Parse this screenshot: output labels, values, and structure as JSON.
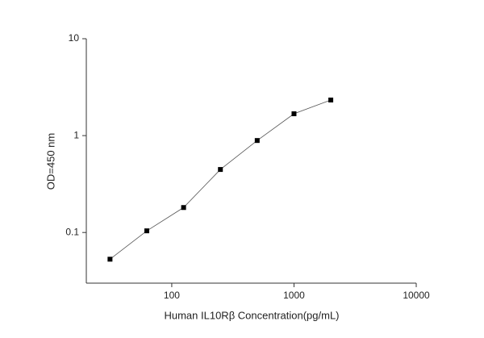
{
  "chart_data": {
    "type": "line",
    "x_label": "Human IL10Rβ  Concentration(pg/mL)",
    "y_label": "OD=450 nm",
    "x": [
      31.25,
      62.5,
      125,
      250,
      500,
      1000,
      2000
    ],
    "series": [
      {
        "color": "#555555",
        "values": [
          0.053,
          0.104,
          0.181,
          0.447,
          0.89,
          1.68,
          2.33
        ]
      }
    ],
    "xscale": "log",
    "yscale": "log",
    "xlim": [
      20,
      10000
    ],
    "ylim": [
      0.03,
      10
    ],
    "xticks": [
      100,
      1000,
      10000
    ],
    "yticks": [
      0.1,
      1,
      10
    ],
    "grid": false
  }
}
